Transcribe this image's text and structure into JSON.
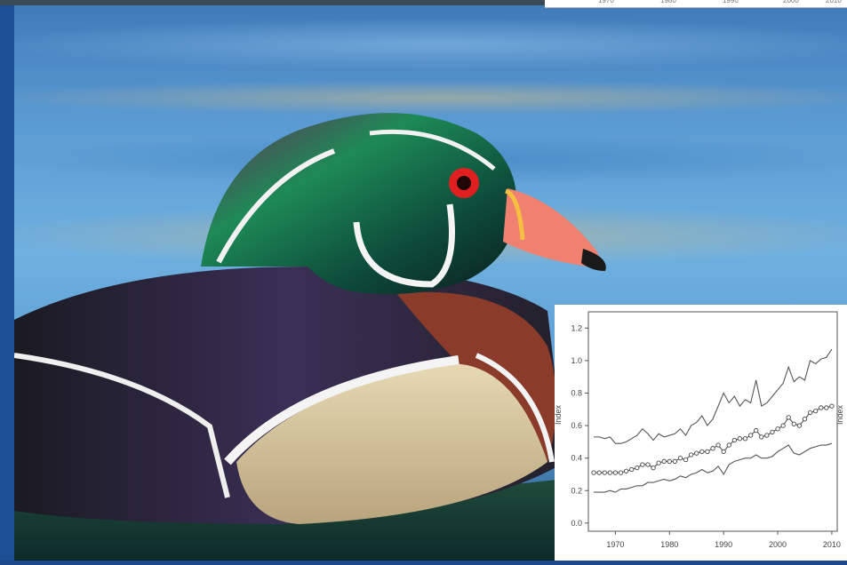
{
  "photo": {
    "subject": "duck-photo",
    "colors": {
      "water": "#5b9bd3",
      "head_green": "#1f7a4f",
      "eye": "#e02020",
      "bill": "#f08070",
      "chest": "#8a3b2a",
      "flank": "#d9c9a0"
    }
  },
  "chart_data": {
    "type": "line",
    "title": "",
    "xlabel": "",
    "ylabel": "Index",
    "ylabel_right": "Index",
    "xlim": [
      1965,
      2011
    ],
    "ylim": [
      -0.05,
      1.3
    ],
    "x_ticks": [
      1970,
      1980,
      1990,
      2000,
      2010
    ],
    "y_ticks": [
      "0.0",
      "0.2",
      "0.4",
      "0.6",
      "0.8",
      "1.0",
      "1.2"
    ],
    "x": [
      1966,
      1967,
      1968,
      1969,
      1970,
      1971,
      1972,
      1973,
      1974,
      1975,
      1976,
      1977,
      1978,
      1979,
      1980,
      1981,
      1982,
      1983,
      1984,
      1985,
      1986,
      1987,
      1988,
      1989,
      1990,
      1991,
      1992,
      1993,
      1994,
      1995,
      1996,
      1997,
      1998,
      1999,
      2000,
      2001,
      2002,
      2003,
      2004,
      2005,
      2006,
      2007,
      2008,
      2009,
      2010
    ],
    "series": [
      {
        "values": [
          0.53,
          0.53,
          0.52,
          0.53,
          0.49,
          0.49,
          0.5,
          0.52,
          0.54,
          0.58,
          0.55,
          0.51,
          0.55,
          0.53,
          0.54,
          0.55,
          0.58,
          0.54,
          0.6,
          0.62,
          0.66,
          0.6,
          0.64,
          0.72,
          0.8,
          0.74,
          0.78,
          0.72,
          0.76,
          0.74,
          0.88,
          0.72,
          0.74,
          0.78,
          0.82,
          0.86,
          0.96,
          0.87,
          0.9,
          0.88,
          1.0,
          0.98,
          1.01,
          1.02,
          1.07
        ]
      },
      {
        "values": [
          0.31,
          0.31,
          0.31,
          0.31,
          0.31,
          0.31,
          0.32,
          0.33,
          0.34,
          0.36,
          0.36,
          0.34,
          0.37,
          0.38,
          0.38,
          0.38,
          0.4,
          0.39,
          0.42,
          0.43,
          0.44,
          0.44,
          0.46,
          0.48,
          0.44,
          0.48,
          0.51,
          0.52,
          0.52,
          0.54,
          0.57,
          0.53,
          0.54,
          0.56,
          0.58,
          0.6,
          0.65,
          0.61,
          0.6,
          0.64,
          0.68,
          0.69,
          0.71,
          0.71,
          0.72
        ],
        "markers": true
      },
      {
        "values": [
          0.19,
          0.19,
          0.19,
          0.2,
          0.19,
          0.21,
          0.21,
          0.22,
          0.23,
          0.23,
          0.25,
          0.25,
          0.26,
          0.27,
          0.26,
          0.27,
          0.29,
          0.28,
          0.3,
          0.31,
          0.33,
          0.31,
          0.32,
          0.35,
          0.3,
          0.36,
          0.38,
          0.39,
          0.4,
          0.4,
          0.42,
          0.4,
          0.4,
          0.41,
          0.44,
          0.46,
          0.48,
          0.43,
          0.42,
          0.44,
          0.46,
          0.47,
          0.48,
          0.48,
          0.49
        ]
      }
    ]
  }
}
